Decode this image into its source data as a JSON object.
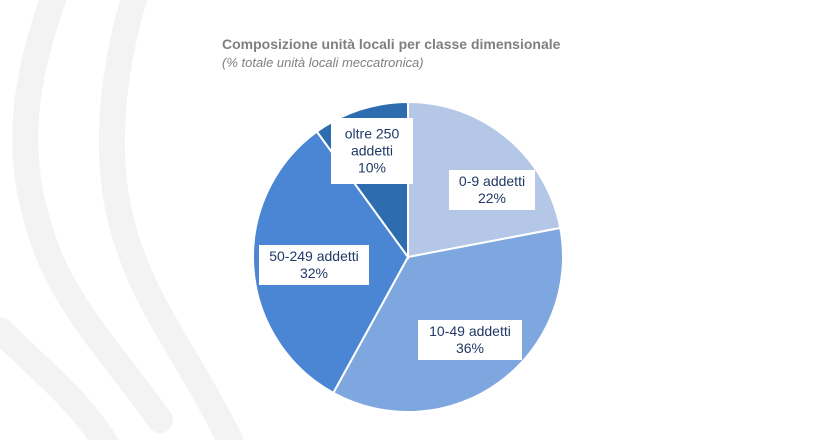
{
  "chart_data": {
    "type": "pie",
    "title": "Composizione unità locali per classe dimensionale",
    "subtitle": "(% totale unità locali meccatronica)",
    "slices": [
      {
        "category": "0-9 addetti",
        "value": 22,
        "label": "22%",
        "color": "#b4c7e7"
      },
      {
        "category": "10-49 addetti",
        "value": 36,
        "label": "36%",
        "color": "#7ea7e0"
      },
      {
        "category": "50-249 addetti",
        "value": 32,
        "label": "32%",
        "color": "#4a86d4"
      },
      {
        "category": "oltre 250 addetti",
        "value": 10,
        "label": "10%",
        "color": "#2e6cb0"
      }
    ],
    "legend": "none",
    "label_color": "#1f3864"
  }
}
